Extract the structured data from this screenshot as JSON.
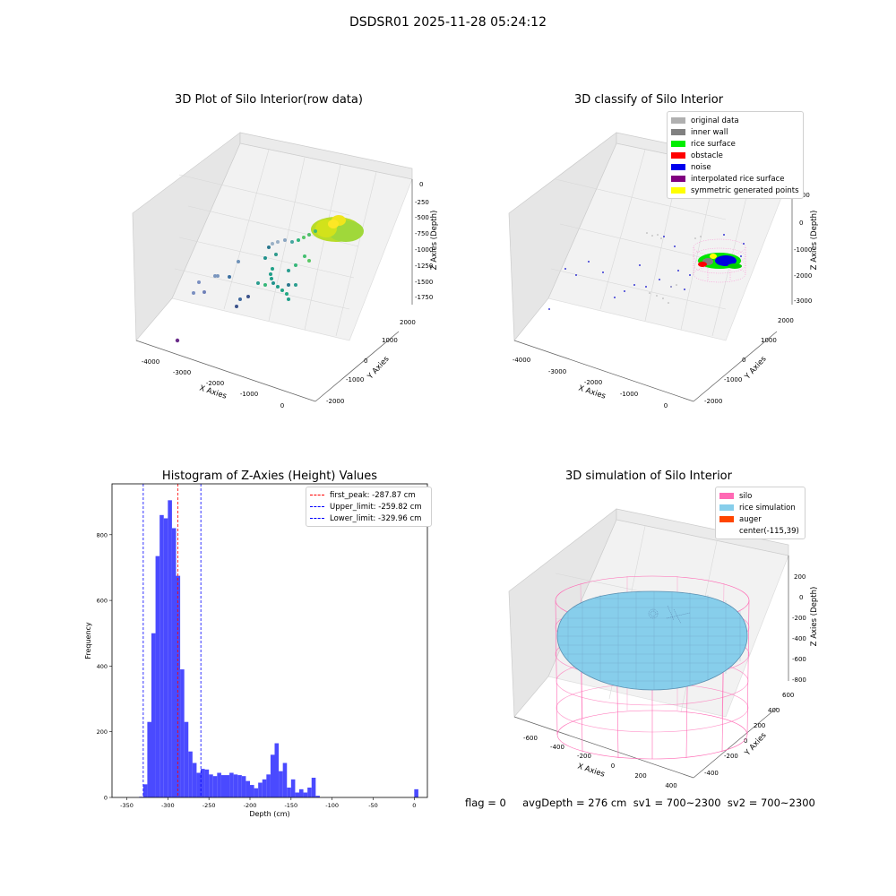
{
  "title": "DSDSR01 2025-11-28 05:24:12",
  "panels": {
    "raw": {
      "title": "3D Plot of Silo Interior(row data)",
      "xlabel": "X Axies",
      "ylabel": "Y Axies",
      "zlabel": "Z Axies (Depth)",
      "xticks": [
        "-4000",
        "-3000",
        "-2000",
        "-1000",
        "0"
      ],
      "yticks": [
        "2000",
        "1000",
        "0",
        "-1000",
        "-2000"
      ],
      "zticks": [
        "0",
        "-250",
        "-500",
        "-750",
        "-1000",
        "-1250",
        "-1500",
        "-1750"
      ]
    },
    "classify": {
      "title": "3D classify of Silo Interior",
      "xlabel": "X Axies",
      "ylabel": "Y Axies",
      "zlabel": "Z Axies (Depth)",
      "xticks": [
        "-4000",
        "-3000",
        "-2000",
        "-1000",
        "0"
      ],
      "yticks": [
        "2000",
        "1000",
        "0",
        "-1000",
        "-2000"
      ],
      "zticks": [
        "1000",
        "0",
        "-1000",
        "-2000",
        "-3000"
      ],
      "legend": [
        {
          "label": "original data",
          "color": "#b0b0b0"
        },
        {
          "label": "inner wall",
          "color": "#808080"
        },
        {
          "label": "rice surface",
          "color": "#00ee00"
        },
        {
          "label": "obstacle",
          "color": "#ff0000"
        },
        {
          "label": "noise",
          "color": "#0000ee"
        },
        {
          "label": "interpolated rice surface",
          "color": "#800080"
        },
        {
          "label": "symmetric generated points",
          "color": "#ffff00"
        }
      ]
    },
    "simulation": {
      "title": "3D simulation of Silo Interior",
      "xlabel": "X Axies",
      "ylabel": "Y Axies",
      "zlabel": "Z Axies (Depth)",
      "xticks": [
        "-600",
        "-400",
        "-200",
        "0",
        "200",
        "400"
      ],
      "yticks": [
        "600",
        "400",
        "200",
        "0",
        "-200",
        "-400"
      ],
      "zticks": [
        "200",
        "0",
        "-200",
        "-400",
        "-600",
        "-800"
      ],
      "legend": [
        {
          "label": "silo",
          "color": "#ff69b4"
        },
        {
          "label": "rice simulation",
          "color": "#87ceeb"
        },
        {
          "label": "auger",
          "color": "#ff4500"
        },
        {
          "label": "center(-115,39)",
          "color": "#ffffff"
        }
      ]
    }
  },
  "footer": "flag = 0     avgDepth = 276 cm  sv1 = 700~2300  sv2 = 700~2300",
  "chart_data": [
    {
      "type": "bar",
      "title": "Histogram of Z-Axies (Height) Values",
      "xlabel": "Depth (cm)",
      "ylabel": "Frequency",
      "xlim": [
        -368,
        16
      ],
      "ylim": [
        0,
        955
      ],
      "xticks": [
        -350,
        -300,
        -250,
        -200,
        -150,
        -100,
        -50,
        0
      ],
      "yticks": [
        0,
        200,
        400,
        600,
        800
      ],
      "bin_edges": [
        -335,
        -330,
        -325,
        -320,
        -315,
        -310,
        -305,
        -300,
        -295,
        -290,
        -285,
        -280,
        -275,
        -270,
        -265,
        -260,
        -255,
        -250,
        -245,
        -240,
        -235,
        -230,
        -225,
        -220,
        -215,
        -210,
        -205,
        -200,
        -195,
        -190,
        -185,
        -180,
        -175,
        -170,
        -165,
        -160,
        -155,
        -150,
        -145,
        -140,
        -135,
        -130,
        -125,
        -120,
        -115,
        -110,
        -105,
        -100,
        -95,
        -90,
        -85,
        -80,
        -75,
        -70,
        -65,
        -60,
        -55,
        -50,
        -45,
        -40,
        -35,
        -30,
        -25,
        -20,
        -15,
        -10,
        -5,
        0,
        5
      ],
      "values": [
        2,
        40,
        230,
        500,
        735,
        860,
        850,
        905,
        820,
        675,
        390,
        230,
        140,
        105,
        75,
        87,
        85,
        70,
        65,
        75,
        68,
        68,
        75,
        70,
        68,
        65,
        50,
        38,
        28,
        45,
        55,
        70,
        130,
        165,
        80,
        105,
        30,
        55,
        15,
        25,
        15,
        30,
        60,
        5,
        0,
        0,
        0,
        0,
        0,
        0,
        0,
        0,
        0,
        0,
        0,
        0,
        0,
        0,
        0,
        0,
        0,
        0,
        0,
        0,
        0,
        0,
        0,
        25
      ],
      "bar_color": "#4a4aff",
      "vlines": [
        {
          "label": "first_peak: -287.87 cm",
          "x": -287.87,
          "color": "#ff0000"
        },
        {
          "label": "Upper_limit: -259.82 cm",
          "x": -259.82,
          "color": "#0000ff"
        },
        {
          "label": "Lower_limit: -329.96 cm",
          "x": -329.96,
          "color": "#0000ff"
        }
      ],
      "legend_position": "top-right"
    }
  ]
}
